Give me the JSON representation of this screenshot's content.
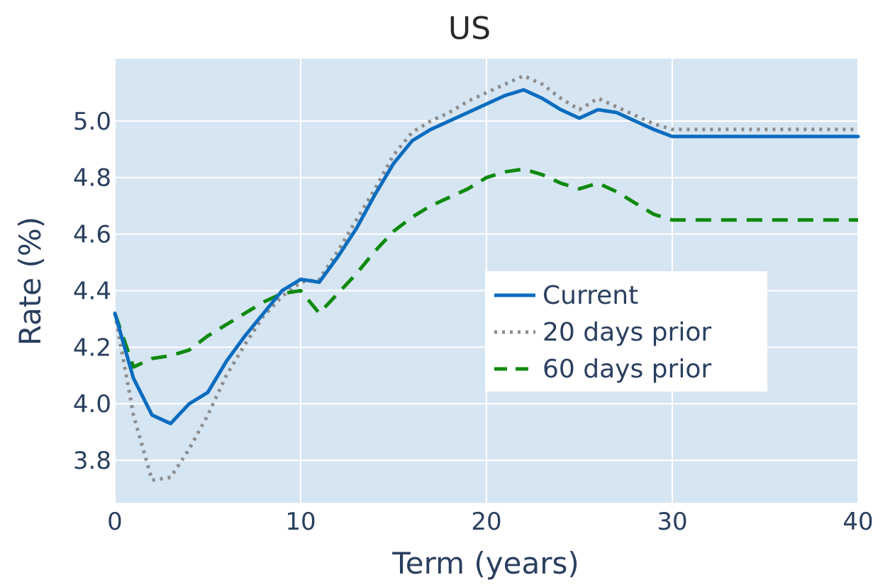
{
  "chart_data": {
    "type": "line",
    "title": "US",
    "xlabel": "Term (years)",
    "ylabel": "Rate (%)",
    "xlim": [
      0,
      40
    ],
    "ylim": [
      3.65,
      5.22
    ],
    "xticks": [
      0,
      10,
      20,
      30,
      40
    ],
    "yticks": [
      3.8,
      4.0,
      4.2,
      4.4,
      4.6,
      4.8,
      5.0
    ],
    "ytick_labels": [
      "3.8",
      "4.0",
      "4.2",
      "4.4",
      "4.6",
      "4.8",
      "5.0"
    ],
    "xtick_labels": [
      "0",
      "10",
      "20",
      "30",
      "40"
    ],
    "grid": true,
    "background_color": "#d6e5f2",
    "legend_position": "right-center",
    "series": [
      {
        "name": "Current",
        "color": "#0b6cbf",
        "style": "solid",
        "x": [
          0,
          1,
          2,
          3,
          4,
          5,
          6,
          7,
          8,
          9,
          10,
          11,
          12,
          13,
          14,
          15,
          16,
          17,
          18,
          19,
          20,
          21,
          22,
          23,
          24,
          25,
          26,
          27,
          28,
          29,
          30,
          40
        ],
        "y": [
          4.32,
          4.09,
          3.96,
          3.93,
          4.0,
          4.04,
          4.15,
          4.24,
          4.32,
          4.4,
          4.44,
          4.43,
          4.52,
          4.62,
          4.74,
          4.85,
          4.93,
          4.97,
          5.0,
          5.03,
          5.06,
          5.09,
          5.11,
          5.08,
          5.04,
          5.01,
          5.04,
          5.03,
          5.0,
          4.97,
          4.945,
          4.945
        ]
      },
      {
        "name": "20 days prior",
        "color": "#8c8c8c",
        "style": "dotted",
        "x": [
          0,
          1,
          2,
          3,
          4,
          5,
          6,
          7,
          8,
          9,
          10,
          11,
          12,
          13,
          14,
          15,
          16,
          17,
          18,
          19,
          20,
          21,
          22,
          23,
          24,
          25,
          26,
          27,
          28,
          29,
          30,
          40
        ],
        "y": [
          4.32,
          3.96,
          3.73,
          3.74,
          3.84,
          3.96,
          4.1,
          4.21,
          4.31,
          4.38,
          4.43,
          4.44,
          4.54,
          4.65,
          4.76,
          4.88,
          4.96,
          5.0,
          5.03,
          5.07,
          5.1,
          5.13,
          5.16,
          5.13,
          5.08,
          5.04,
          5.08,
          5.05,
          5.02,
          4.99,
          4.97,
          4.97
        ]
      },
      {
        "name": "60 days prior",
        "color": "#0e8a0e",
        "style": "dashed",
        "x": [
          0,
          1,
          2,
          3,
          4,
          5,
          6,
          7,
          8,
          9,
          10,
          11,
          12,
          13,
          14,
          15,
          16,
          17,
          18,
          19,
          20,
          21,
          22,
          23,
          24,
          25,
          26,
          27,
          28,
          29,
          30,
          40
        ],
        "y": [
          4.32,
          4.13,
          4.16,
          4.17,
          4.19,
          4.24,
          4.28,
          4.32,
          4.36,
          4.39,
          4.4,
          4.32,
          4.39,
          4.46,
          4.54,
          4.61,
          4.66,
          4.7,
          4.73,
          4.76,
          4.8,
          4.82,
          4.83,
          4.81,
          4.78,
          4.76,
          4.78,
          4.75,
          4.71,
          4.67,
          4.65,
          4.65
        ]
      }
    ]
  }
}
